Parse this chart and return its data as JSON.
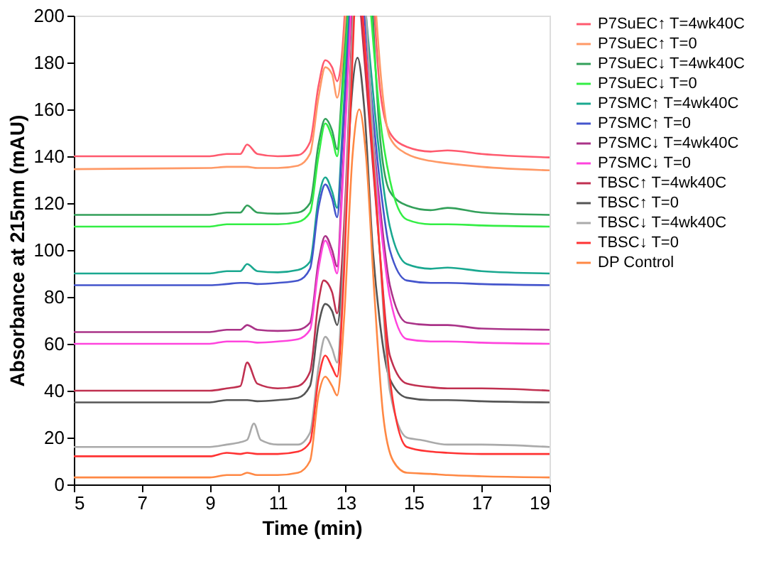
{
  "chart_data": {
    "type": "line",
    "xlabel": "Time (min)",
    "ylabel": "Absorbance at 215nm (mAU)",
    "xlim": [
      5,
      19
    ],
    "xticks": [
      5,
      7,
      9,
      11,
      13,
      15,
      17,
      19
    ],
    "ylim": [
      0,
      200
    ],
    "yticks": [
      0,
      20,
      40,
      60,
      80,
      100,
      120,
      140,
      160,
      180,
      200
    ],
    "grid": false,
    "legend": "right",
    "marker": "none",
    "line_style": "solid",
    "series": [
      {
        "name": "P7SuEC↑ T=4wk40C",
        "color": "#ff5a6e",
        "x": [
          5,
          9,
          9.5,
          9.9,
          10.1,
          10.4,
          11,
          11.6,
          11.95,
          12.2,
          12.4,
          12.6,
          12.75,
          12.9,
          12.97,
          13.4,
          13.85,
          14.0,
          14.3,
          14.8,
          15.5,
          16,
          17,
          19
        ],
        "values": [
          140,
          140,
          141,
          141,
          145,
          141,
          140,
          140.5,
          146,
          170,
          181,
          178,
          172,
          185,
          200,
          null,
          200,
          170,
          150,
          144,
          142,
          142.5,
          141,
          139.5
        ]
      },
      {
        "name": "P7SuEC↑ T=0",
        "color": "#ff9966",
        "x": [
          5,
          9,
          9.5,
          9.9,
          10.1,
          10.4,
          11,
          11.6,
          11.95,
          12.2,
          12.4,
          12.6,
          12.75,
          12.9,
          13.0,
          13.45,
          13.9,
          14.05,
          14.3,
          14.8,
          15.5,
          16,
          17,
          19
        ],
        "values": [
          134.5,
          135,
          135.5,
          135.5,
          135.5,
          135,
          135,
          136,
          141,
          165,
          178,
          175,
          165,
          180,
          200,
          null,
          200,
          172,
          148,
          141,
          138,
          137,
          135.5,
          134
        ]
      },
      {
        "name": "P7SuEC↓ T=4wk40C",
        "color": "#33a05a",
        "x": [
          5,
          9,
          9.5,
          9.9,
          10.1,
          10.4,
          11,
          11.6,
          11.95,
          12.2,
          12.4,
          12.6,
          12.75,
          12.9,
          13.05,
          13.4,
          13.8,
          14.0,
          14.3,
          14.8,
          15.5,
          16,
          17,
          19
        ],
        "values": [
          115,
          115,
          116,
          116,
          119,
          116,
          115.5,
          116,
          120,
          145,
          156,
          151,
          143,
          170,
          200,
          null,
          200,
          150,
          125,
          119,
          117,
          118,
          116,
          115
        ]
      },
      {
        "name": "P7SuEC↓ T=0",
        "color": "#33ee44",
        "x": [
          5,
          9,
          9.5,
          9.9,
          10.1,
          10.4,
          11,
          11.6,
          11.95,
          12.2,
          12.4,
          12.6,
          12.75,
          12.9,
          13.08,
          13.4,
          13.75,
          14.0,
          14.3,
          14.8,
          15.5,
          16,
          17,
          19
        ],
        "values": [
          110,
          110,
          111,
          111,
          111,
          111,
          111,
          112,
          116,
          140,
          154,
          148,
          140,
          165,
          200,
          null,
          200,
          158,
          130,
          113,
          111,
          111,
          110.5,
          110
        ]
      },
      {
        "name": "P7SMC↑ T=4wk40C",
        "color": "#1aa890",
        "x": [
          5,
          9,
          9.5,
          9.9,
          10.1,
          10.4,
          11,
          11.6,
          11.95,
          12.2,
          12.4,
          12.6,
          12.75,
          12.9,
          13.1,
          13.35,
          13.6,
          14.0,
          14.3,
          14.8,
          15.5,
          16,
          17,
          19
        ],
        "values": [
          90,
          90,
          91,
          91,
          94,
          91,
          90.5,
          91.5,
          95,
          122,
          131,
          125,
          118,
          150,
          200,
          null,
          200,
          140,
          110,
          94,
          92,
          92.5,
          91,
          90
        ]
      },
      {
        "name": "P7SMC↑ T=0",
        "color": "#4455cc",
        "x": [
          5,
          9,
          9.5,
          9.9,
          10.1,
          10.4,
          11,
          11.6,
          11.95,
          12.2,
          12.4,
          12.6,
          12.75,
          12.9,
          13.12,
          13.35,
          13.55,
          14.0,
          14.3,
          14.8,
          15.5,
          16,
          17,
          19
        ],
        "values": [
          85,
          85,
          85.5,
          86,
          86,
          85.5,
          86,
          87,
          92,
          118,
          128,
          122,
          114,
          145,
          200,
          null,
          200,
          130,
          100,
          87,
          86,
          86,
          85.5,
          85
        ]
      },
      {
        "name": "P7SMC↓ T=4wk40C",
        "color": "#aa3388",
        "x": [
          5,
          9,
          9.5,
          9.9,
          10.1,
          10.4,
          11,
          11.6,
          11.95,
          12.2,
          12.4,
          12.6,
          12.75,
          12.9,
          13.15,
          13.32,
          13.5,
          14.0,
          14.3,
          14.8,
          15.5,
          16,
          17,
          19
        ],
        "values": [
          65,
          65,
          66,
          66,
          68,
          66,
          65.5,
          66,
          69,
          95,
          106,
          100,
          93,
          130,
          200,
          null,
          200,
          120,
          85,
          69,
          68,
          68,
          66.5,
          66
        ]
      },
      {
        "name": "P7SMC↓ T=0",
        "color": "#ff44dd",
        "x": [
          5,
          9,
          9.5,
          9.9,
          10.1,
          10.4,
          11,
          11.6,
          11.95,
          12.2,
          12.4,
          12.6,
          12.75,
          12.9,
          13.15,
          13.32,
          13.5,
          14.0,
          14.3,
          14.8,
          15.5,
          16,
          17,
          19
        ],
        "values": [
          60,
          60,
          61,
          61,
          61,
          60.5,
          61,
          62,
          66,
          92,
          104,
          97,
          90,
          125,
          200,
          null,
          200,
          115,
          80,
          62,
          61,
          61,
          60.5,
          60
        ]
      },
      {
        "name": "TBSC↑ T=4wk40C",
        "color": "#c03050",
        "x": [
          5,
          9,
          9.5,
          9.9,
          10.1,
          10.4,
          11,
          11.6,
          11.95,
          12.2,
          12.35,
          12.6,
          12.75,
          12.95,
          13.2,
          13.32,
          13.45,
          14.0,
          14.3,
          14.8,
          15.5,
          16,
          17,
          19
        ],
        "values": [
          40,
          40,
          41,
          42,
          52,
          43,
          41,
          42,
          48,
          78,
          87,
          82,
          73,
          110,
          200,
          null,
          200,
          100,
          55,
          43,
          41.5,
          41,
          41,
          40
        ]
      },
      {
        "name": "TBSC↑ T=0",
        "color": "#555555",
        "x": [
          5,
          9,
          9.5,
          9.9,
          10.1,
          10.4,
          11,
          11.6,
          11.95,
          12.2,
          12.4,
          12.6,
          12.75,
          12.95,
          13.15,
          13.35,
          13.55,
          13.8,
          14.0,
          14.3,
          14.8,
          15.5,
          16,
          17,
          19
        ],
        "values": [
          35,
          35,
          36,
          36,
          36,
          35.5,
          36,
          37,
          42,
          68,
          77,
          74,
          68,
          100,
          160,
          182,
          160,
          100,
          70,
          45,
          37,
          36,
          36,
          35.5,
          35
        ]
      },
      {
        "name": "TBSC↓ T=4wk40C",
        "color": "#aaaaaa",
        "x": [
          5,
          9,
          9.5,
          9.9,
          10.1,
          10.3,
          10.5,
          11,
          11.6,
          11.95,
          12.2,
          12.4,
          12.6,
          12.75,
          12.95,
          13.22,
          13.4,
          13.6,
          14.0,
          14.3,
          14.8,
          15.2,
          16,
          17,
          19
        ],
        "values": [
          16,
          16,
          17,
          18,
          19,
          26,
          19,
          17,
          17,
          22,
          50,
          63,
          58,
          52,
          100,
          200,
          null,
          200,
          100,
          40,
          20,
          19,
          17,
          17,
          16
        ]
      },
      {
        "name": "TBSC↓ T=0",
        "color": "#ff3333",
        "x": [
          5,
          9,
          9.5,
          9.9,
          10.1,
          10.4,
          11,
          11.6,
          11.95,
          12.2,
          12.4,
          12.6,
          12.75,
          12.95,
          13.25,
          13.38,
          13.5,
          14.0,
          14.3,
          14.8,
          15.5,
          16,
          17,
          19
        ],
        "values": [
          12,
          12,
          13.5,
          13,
          13.5,
          13,
          13,
          14,
          18,
          45,
          55,
          50,
          46,
          90,
          200,
          null,
          200,
          100,
          45,
          16,
          14,
          13.5,
          13,
          13
        ]
      },
      {
        "name": "DP Control",
        "color": "#ff8844",
        "x": [
          5,
          9,
          9.5,
          9.9,
          10.1,
          10.4,
          11,
          11.6,
          11.95,
          12.2,
          12.4,
          12.6,
          12.75,
          12.95,
          13.2,
          13.4,
          13.6,
          13.85,
          14.1,
          14.4,
          14.8,
          15.5,
          16,
          17,
          19
        ],
        "values": [
          3,
          3,
          4,
          4,
          5,
          4,
          4,
          5,
          10,
          38,
          46,
          42,
          38,
          70,
          140,
          160,
          140,
          80,
          30,
          10,
          5,
          4.5,
          4,
          3.5,
          3
        ]
      }
    ]
  }
}
